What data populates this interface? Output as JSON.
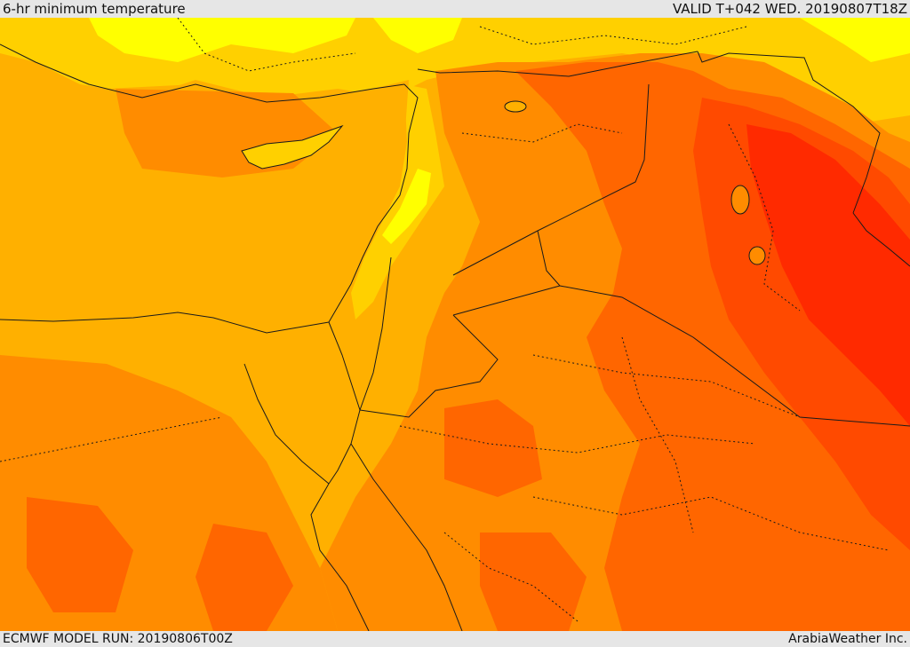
{
  "header": {
    "title": "6-hr minimum temperature",
    "valid": "VALID T+042 WED. 20190807T18Z"
  },
  "footer": {
    "model_run": "ECMWF MODEL RUN: 20190806T00Z",
    "credit": "ArabiaWeather Inc."
  },
  "map": {
    "region": "Eastern Mediterranean and Middle East",
    "colors": {
      "warm_light": "#ffff00",
      "warm_yellow": "#ffd000",
      "warm_amber": "#ffb000",
      "hot_orange": "#ff8c00",
      "hot_dark_orange": "#ff6600",
      "very_hot_red_orange": "#ff4a00",
      "extreme_red": "#ff2a00",
      "border_line": "#1a1a1a"
    }
  }
}
